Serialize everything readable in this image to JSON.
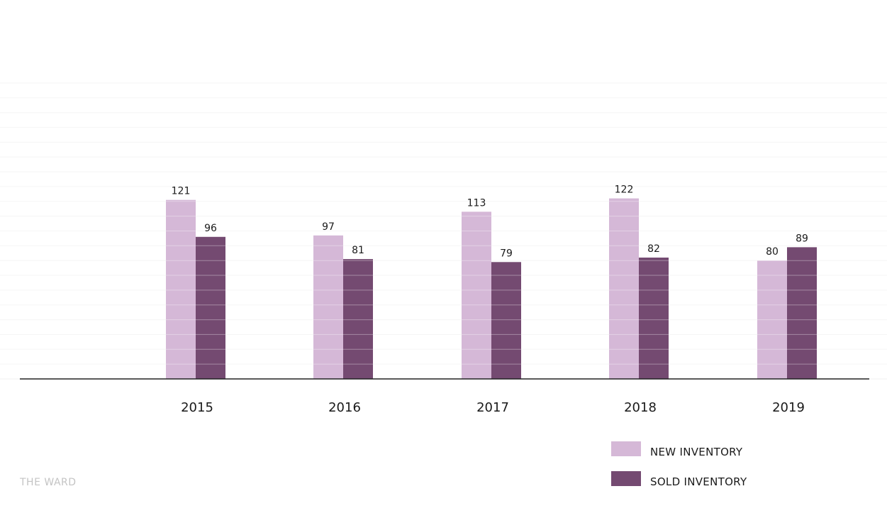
{
  "chart_data": {
    "type": "bar",
    "categories": [
      "2015",
      "2016",
      "2017",
      "2018",
      "2019"
    ],
    "series": [
      {
        "name": "NEW INVENTORY",
        "values": [
          121,
          97,
          113,
          122,
          80
        ],
        "color": "#d5b8d7"
      },
      {
        "name": "SOLD INVENTORY",
        "values": [
          96,
          81,
          79,
          82,
          89
        ],
        "color": "#744a71"
      }
    ],
    "title": "",
    "xlabel": "",
    "ylabel": "",
    "ylim": [
      0,
      200
    ],
    "grid": true,
    "legend_position": "bottom-right"
  },
  "watermark": "THE WARD",
  "colors": {
    "axis": "#222222",
    "grid": "#f2f2f2",
    "watermark": "#c4c4c4"
  }
}
